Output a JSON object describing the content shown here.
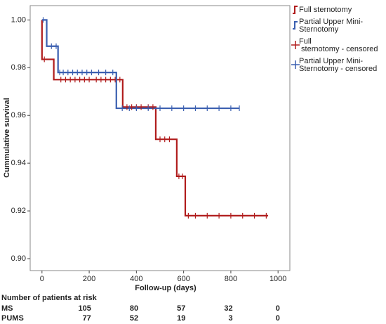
{
  "chart_data": {
    "type": "survival",
    "ylabel": "Cummulative survival",
    "xlabel": "Follow-up (days)",
    "xlim": [
      -50,
      1050
    ],
    "ylim": [
      0.895,
      1.006
    ],
    "xticks": [
      0,
      200,
      400,
      600,
      800,
      1000
    ],
    "yticks": [
      {
        "value": 0.9,
        "label": "0.90"
      },
      {
        "value": 0.92,
        "label": "0.92"
      },
      {
        "value": 0.94,
        "label": "0.94"
      },
      {
        "value": 0.96,
        "label": "0.96"
      },
      {
        "value": 0.98,
        "label": "0.98"
      },
      {
        "value": 1.0,
        "label": "1.00"
      }
    ],
    "series": [
      {
        "name": "Full sternotomy",
        "color": "#b01c1c",
        "style": "step",
        "x": [
          0,
          0,
          50,
          342,
          482,
          571,
          607,
          958
        ],
        "values": [
          1.0,
          0.9835,
          0.975,
          0.9635,
          0.95,
          0.9345,
          0.918,
          0.918
        ]
      },
      {
        "name": "Partial Upper Mini-Sternotomy",
        "color": "#3a5fb0",
        "style": "step",
        "x": [
          0,
          20,
          68,
          315,
          836
        ],
        "values": [
          1.0,
          0.989,
          0.978,
          0.963,
          0.963
        ]
      },
      {
        "name": "Full sternotomy - censored",
        "color": "#b01c1c",
        "style": "censor",
        "x": [
          10,
          80,
          100,
          120,
          140,
          160,
          180,
          200,
          230,
          250,
          270,
          290,
          310,
          330,
          360,
          380,
          400,
          420,
          450,
          470,
          500,
          520,
          540,
          580,
          595,
          620,
          650,
          700,
          750,
          800,
          850,
          900,
          950
        ],
        "values": [
          0.9835,
          0.975,
          0.975,
          0.975,
          0.975,
          0.975,
          0.975,
          0.975,
          0.975,
          0.975,
          0.975,
          0.975,
          0.975,
          0.975,
          0.9635,
          0.9635,
          0.9635,
          0.9635,
          0.9635,
          0.9635,
          0.95,
          0.95,
          0.95,
          0.9345,
          0.9345,
          0.918,
          0.918,
          0.918,
          0.918,
          0.918,
          0.918,
          0.918,
          0.918
        ]
      },
      {
        "name": "Partial Upper Mini-Sternotomy - censored",
        "color": "#3a5fb0",
        "style": "censor",
        "x": [
          5,
          40,
          60,
          75,
          90,
          110,
          130,
          150,
          170,
          190,
          210,
          240,
          270,
          300,
          340,
          370,
          400,
          450,
          500,
          550,
          600,
          650,
          700,
          750,
          800,
          836
        ],
        "values": [
          1.0,
          0.989,
          0.989,
          0.978,
          0.978,
          0.978,
          0.978,
          0.978,
          0.978,
          0.978,
          0.978,
          0.978,
          0.978,
          0.978,
          0.963,
          0.963,
          0.963,
          0.963,
          0.963,
          0.963,
          0.963,
          0.963,
          0.963,
          0.963,
          0.963,
          0.963
        ]
      }
    ],
    "risk_table": {
      "title": "Number of patients at risk",
      "rows": [
        {
          "name": "MS",
          "color": "#b01c1c",
          "values": [
            105,
            80,
            57,
            32,
            0
          ]
        },
        {
          "name": "PUMS",
          "color": "#3a5fb0",
          "values": [
            77,
            52,
            19,
            3,
            0
          ]
        }
      ]
    }
  }
}
